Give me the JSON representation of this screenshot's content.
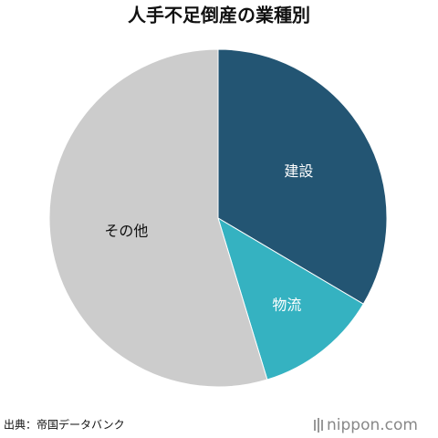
{
  "chart_data": {
    "type": "pie",
    "title": "人手不足倒産の業種別",
    "categories": [
      "建設",
      "物流",
      "その他"
    ],
    "values": [
      33.5,
      11.8,
      54.7
    ],
    "colors": [
      "#235573",
      "#35b2c1",
      "#cccccc"
    ],
    "source": "出典：帝国データバンク",
    "logo": "nippon.com"
  }
}
